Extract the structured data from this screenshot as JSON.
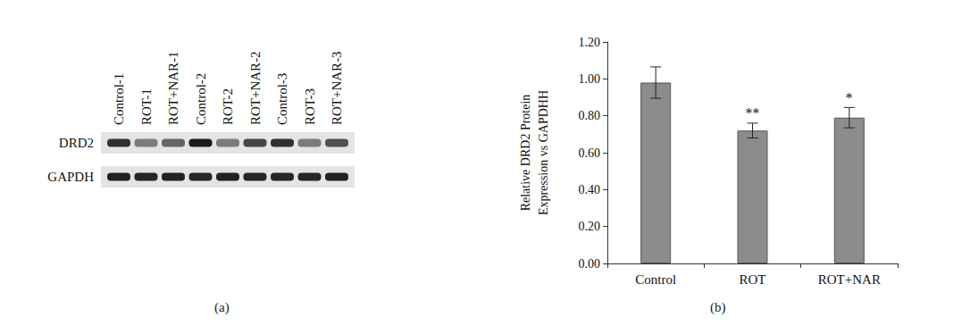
{
  "blot": {
    "panel_label": "(a)",
    "lanes": [
      "Control-1",
      "ROT-1",
      "ROT+NAR-1",
      "Control-2",
      "ROT-2",
      "ROT+NAR-2",
      "Control-3",
      "ROT-3",
      "ROT+NAR-3"
    ],
    "rows": [
      {
        "label": "DRD2",
        "intensities": [
          0.85,
          0.5,
          0.6,
          0.95,
          0.5,
          0.75,
          0.85,
          0.5,
          0.7
        ]
      },
      {
        "label": "GAPDH",
        "intensities": [
          0.92,
          0.9,
          0.92,
          0.9,
          0.92,
          0.9,
          0.9,
          0.9,
          0.92
        ]
      }
    ]
  },
  "chart_data": {
    "type": "bar",
    "panel_label": "(b)",
    "categories": [
      "Control",
      "ROT",
      "ROT+NAR"
    ],
    "values": [
      0.98,
      0.72,
      0.79
    ],
    "errors": [
      0.085,
      0.04,
      0.055
    ],
    "annotations": [
      null,
      "**",
      "*"
    ],
    "color": "#8c8c8c",
    "y_label": "Relative DRD2 Protein\nExpression vs GAPDHH",
    "ylim": [
      0,
      1.2
    ],
    "yticks": [
      {
        "value": 0,
        "label": "0.00"
      },
      {
        "value": 0.2,
        "label": "0.20"
      },
      {
        "value": 0.4,
        "label": "0.40"
      },
      {
        "value": 0.6,
        "label": "0.60"
      },
      {
        "value": 0.8,
        "label": "0.80"
      },
      {
        "value": 1.0,
        "label": "1.00"
      },
      {
        "value": 1.2,
        "label": "1.20"
      }
    ],
    "grid": false
  }
}
